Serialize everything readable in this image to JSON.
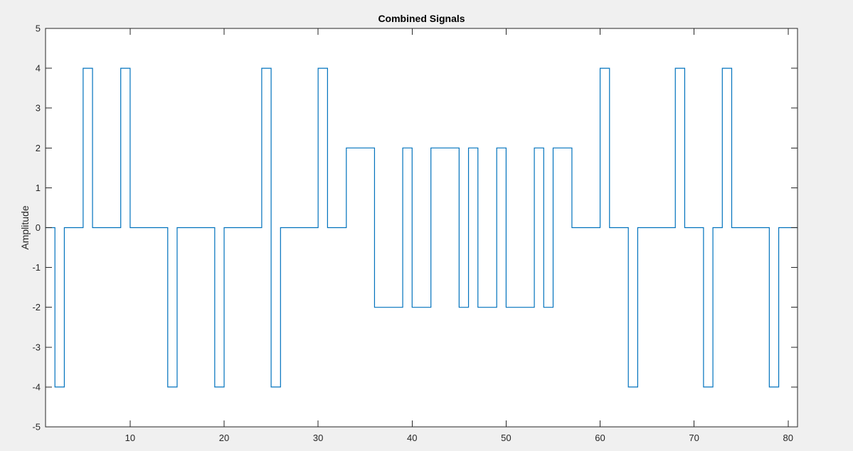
{
  "chart_data": {
    "type": "line",
    "style": "stairs",
    "title": "Combined Signals",
    "xlabel": "",
    "ylabel": "Amplitude",
    "xlim": [
      1,
      81
    ],
    "ylim": [
      -5,
      5
    ],
    "xticks": [
      10,
      20,
      30,
      40,
      50,
      60,
      70,
      80
    ],
    "yticks": [
      -5,
      -4,
      -3,
      -2,
      -1,
      0,
      1,
      2,
      3,
      4,
      5
    ],
    "grid": false,
    "legend": "none",
    "series": [
      {
        "color": "#0072bd",
        "x": [
          1,
          2,
          3,
          4,
          5,
          6,
          7,
          8,
          9,
          10,
          11,
          12,
          13,
          14,
          15,
          16,
          17,
          18,
          19,
          20,
          21,
          22,
          23,
          24,
          25,
          26,
          27,
          28,
          29,
          30,
          31,
          32,
          33,
          34,
          35,
          36,
          37,
          38,
          39,
          40,
          41,
          42,
          43,
          44,
          45,
          46,
          47,
          48,
          49,
          50,
          51,
          52,
          53,
          54,
          55,
          56,
          57,
          58,
          59,
          60,
          61,
          62,
          63,
          64,
          65,
          66,
          67,
          68,
          69,
          70,
          71,
          72,
          73,
          74,
          75,
          76,
          77,
          78,
          79,
          80
        ],
        "values": [
          0,
          -4,
          0,
          0,
          4,
          0,
          0,
          0,
          4,
          0,
          0,
          0,
          0,
          -4,
          0,
          0,
          0,
          0,
          -4,
          0,
          0,
          0,
          0,
          4,
          -4,
          0,
          0,
          0,
          0,
          4,
          0,
          0,
          2,
          2,
          2,
          -2,
          -2,
          -2,
          2,
          -2,
          -2,
          2,
          2,
          2,
          -2,
          2,
          -2,
          -2,
          2,
          -2,
          -2,
          -2,
          2,
          -2,
          2,
          2,
          0,
          0,
          0,
          4,
          0,
          0,
          -4,
          0,
          0,
          0,
          0,
          4,
          0,
          0,
          -4,
          0,
          4,
          0,
          0,
          0,
          0,
          -4,
          0,
          0
        ]
      }
    ]
  },
  "colors": {
    "figure_bg": "#f0f0f0",
    "axes_bg": "#ffffff",
    "axis_line": "#262626",
    "line": "#0072bd"
  }
}
